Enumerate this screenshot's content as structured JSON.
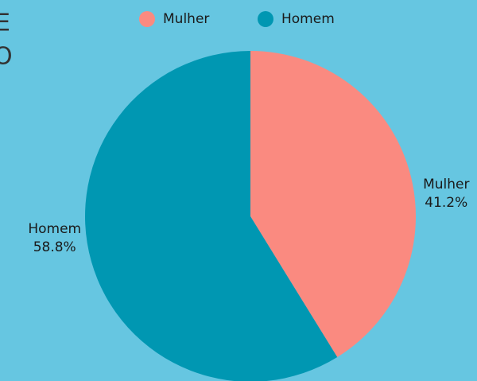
{
  "side_text": [
    "E",
    "O"
  ],
  "chart_data": {
    "type": "pie",
    "categories": [
      "Mulher",
      "Homem"
    ],
    "values": [
      41.2,
      58.8
    ],
    "value_labels": [
      "41.2%",
      "58.8%"
    ],
    "colors": [
      "#fa8a80",
      "#0097b2"
    ],
    "legend": "top"
  }
}
